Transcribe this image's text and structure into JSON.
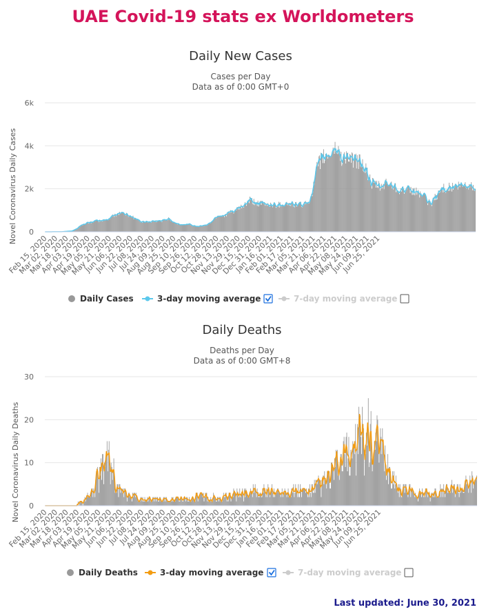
{
  "page": {
    "title": "UAE Covid-19 stats ex Worldometers",
    "footer": "Last updated: June 30, 2021"
  },
  "chart_data": [
    {
      "type": "bar",
      "title": "Daily New Cases",
      "subtitle_1": "Cases per Day",
      "subtitle_2": "Data as of 0:00 GMT+0",
      "ylabel": "Novel Coronavirus Daily Cases",
      "xlabel": "",
      "ylim": [
        0,
        6000
      ],
      "yticks": [
        "0",
        "2k",
        "4k",
        "6k"
      ],
      "ytick_values": [
        0,
        2000,
        4000,
        6000
      ],
      "x_tick_labels": [
        "Feb 15, 2020",
        "Mar 02, 2020",
        "Mar 18, 2020",
        "Apr 03, 2020",
        "Apr 19, 2020",
        "May 05, 2020",
        "May 21, 2020",
        "Jun 06, 2020",
        "Jun 22, 2020",
        "Jul 08, 2020",
        "Jul 24, 2020",
        "Aug 09, 2020",
        "Aug 25, 2020",
        "Sep 10, 2020",
        "Sep 26, 2020",
        "Oct 12, 2020",
        "Oct 28, 2020",
        "Nov 13, 2020",
        "Nov 29, 2020",
        "Dec 15, 2020",
        "Dec 31, 2020",
        "Jan 16, 2021",
        "Feb 01, 2021",
        "Feb 17, 2021",
        "Mar 05, 2021",
        "Mar 21, 2021",
        "Apr 06, 2021",
        "Apr 22, 2021",
        "May 08, 2021",
        "May 24, 2021",
        "Jun 09, 2021",
        "Jun 25, 2021"
      ],
      "grid": true,
      "legend_position": "bottom-center",
      "series": [
        {
          "name": "Daily Cases",
          "color": "#999999",
          "kind": "bar"
        },
        {
          "name": "3-day moving average",
          "color": "#5bc8ec",
          "kind": "line",
          "checked": true
        },
        {
          "name": "7-day moving average",
          "color": "#cccccc",
          "kind": "line",
          "checked": false
        }
      ],
      "trend_points": [
        [
          0,
          0
        ],
        [
          25,
          5
        ],
        [
          40,
          40
        ],
        [
          48,
          150
        ],
        [
          52,
          280
        ],
        [
          62,
          400
        ],
        [
          75,
          500
        ],
        [
          85,
          520
        ],
        [
          90,
          550
        ],
        [
          95,
          600
        ],
        [
          100,
          720
        ],
        [
          105,
          800
        ],
        [
          110,
          870
        ],
        [
          115,
          900
        ],
        [
          120,
          810
        ],
        [
          125,
          760
        ],
        [
          130,
          700
        ],
        [
          138,
          550
        ],
        [
          145,
          460
        ],
        [
          160,
          470
        ],
        [
          175,
          520
        ],
        [
          180,
          560
        ],
        [
          185,
          620
        ],
        [
          190,
          480
        ],
        [
          200,
          330
        ],
        [
          210,
          320
        ],
        [
          215,
          380
        ],
        [
          220,
          280
        ],
        [
          230,
          270
        ],
        [
          240,
          310
        ],
        [
          245,
          390
        ],
        [
          250,
          530
        ],
        [
          255,
          690
        ],
        [
          258,
          760
        ],
        [
          262,
          740
        ],
        [
          270,
          800
        ],
        [
          275,
          900
        ],
        [
          280,
          940
        ],
        [
          290,
          1100
        ],
        [
          300,
          1300
        ],
        [
          305,
          1470
        ],
        [
          310,
          1380
        ],
        [
          315,
          1350
        ],
        [
          320,
          1300
        ],
        [
          330,
          1280
        ],
        [
          340,
          1250
        ],
        [
          350,
          1270
        ],
        [
          360,
          1300
        ],
        [
          370,
          1280
        ],
        [
          380,
          1250
        ],
        [
          390,
          1300
        ],
        [
          395,
          1550
        ],
        [
          400,
          2100
        ],
        [
          405,
          2900
        ],
        [
          410,
          3300
        ],
        [
          415,
          3450
        ],
        [
          420,
          3530
        ],
        [
          425,
          3600
        ],
        [
          430,
          3800
        ],
        [
          435,
          3900
        ],
        [
          440,
          3500
        ],
        [
          445,
          3400
        ],
        [
          450,
          3600
        ],
        [
          455,
          3300
        ],
        [
          460,
          3350
        ],
        [
          465,
          3250
        ],
        [
          470,
          3300
        ],
        [
          480,
          2750
        ],
        [
          485,
          2300
        ],
        [
          490,
          2200
        ],
        [
          495,
          2150
        ],
        [
          500,
          2050
        ],
        [
          505,
          2200
        ],
        [
          510,
          2250
        ],
        [
          515,
          2200
        ],
        [
          520,
          2150
        ],
        [
          525,
          2000
        ],
        [
          535,
          1950
        ],
        [
          545,
          1900
        ],
        [
          555,
          1850
        ],
        [
          565,
          1650
        ],
        [
          570,
          1400
        ],
        [
          575,
          1300
        ],
        [
          580,
          1550
        ],
        [
          585,
          1750
        ],
        [
          590,
          1950
        ],
        [
          595,
          2050
        ],
        [
          605,
          2050
        ],
        [
          615,
          2100
        ],
        [
          625,
          2150
        ],
        [
          632,
          2150
        ],
        [
          635,
          2100
        ],
        [
          641,
          2100
        ]
      ],
      "day_count": 642
    },
    {
      "type": "bar",
      "title": "Daily Deaths",
      "subtitle_1": "Deaths per Day",
      "subtitle_2": "Data as of 0:00 GMT+8",
      "ylabel": "Novel Coronavirus Daily Deaths",
      "xlabel": "",
      "ylim": [
        0,
        30
      ],
      "yticks": [
        "0",
        "10",
        "20",
        "30"
      ],
      "ytick_values": [
        0,
        10,
        20,
        30
      ],
      "x_tick_labels": [
        "Feb 15, 2020",
        "Mar 02, 2020",
        "Mar 18, 2020",
        "Apr 03, 2020",
        "Apr 19, 2020",
        "May 05, 2020",
        "May 21, 2020",
        "Jun 06, 2020",
        "Jun 22, 2020",
        "Jul 08, 2020",
        "Jul 24, 2020",
        "Aug 09, 2020",
        "Aug 25, 2020",
        "Sep 10, 2020",
        "Sep 26, 2020",
        "Oct 12, 2020",
        "Oct 28, 2020",
        "Nov 13, 2020",
        "Nov 29, 2020",
        "Dec 15, 2020",
        "Dec 31, 2020",
        "Jan 16, 2021",
        "Feb 01, 2021",
        "Feb 17, 2021",
        "Mar 05, 2021",
        "Mar 21, 2021",
        "Apr 06, 2021",
        "Apr 22, 2021",
        "May 08, 2021",
        "May 24, 2021",
        "Jun 09, 2021",
        "Jun 25, 2021"
      ],
      "grid": true,
      "legend_position": "bottom-center",
      "series": [
        {
          "name": "Daily Deaths",
          "color": "#999999",
          "kind": "bar"
        },
        {
          "name": "3-day moving average",
          "color": "#f39c12",
          "kind": "line",
          "checked": true
        },
        {
          "name": "7-day moving average",
          "color": "#cccccc",
          "kind": "line",
          "checked": false
        }
      ],
      "trend_points": [
        [
          0,
          0
        ],
        [
          45,
          0
        ],
        [
          50,
          0.5
        ],
        [
          58,
          1
        ],
        [
          63,
          2
        ],
        [
          70,
          3
        ],
        [
          75,
          5
        ],
        [
          80,
          7
        ],
        [
          85,
          8
        ],
        [
          88,
          9
        ],
        [
          90,
          10
        ],
        [
          95,
          11
        ],
        [
          100,
          9
        ],
        [
          103,
          6
        ],
        [
          106,
          4
        ],
        [
          110,
          4
        ],
        [
          115,
          3
        ],
        [
          120,
          2.5
        ],
        [
          130,
          2
        ],
        [
          145,
          1.5
        ],
        [
          160,
          1.5
        ],
        [
          180,
          1.2
        ],
        [
          200,
          1.5
        ],
        [
          220,
          1.8
        ],
        [
          240,
          2
        ],
        [
          260,
          1.5
        ],
        [
          280,
          2.5
        ],
        [
          290,
          2.5
        ],
        [
          300,
          3
        ],
        [
          320,
          3
        ],
        [
          340,
          3
        ],
        [
          360,
          3.5
        ],
        [
          370,
          3.5
        ],
        [
          380,
          3.5
        ],
        [
          390,
          3
        ],
        [
          400,
          4
        ],
        [
          410,
          5
        ],
        [
          420,
          6
        ],
        [
          430,
          8
        ],
        [
          440,
          10
        ],
        [
          450,
          12
        ],
        [
          460,
          14
        ],
        [
          470,
          16
        ],
        [
          480,
          16
        ],
        [
          490,
          14
        ],
        [
          500,
          12
        ],
        [
          510,
          9
        ],
        [
          515,
          7
        ],
        [
          520,
          5
        ],
        [
          530,
          4
        ],
        [
          540,
          3.5
        ],
        [
          550,
          3
        ],
        [
          570,
          3
        ],
        [
          580,
          3
        ],
        [
          590,
          3
        ],
        [
          600,
          3.5
        ],
        [
          610,
          4
        ],
        [
          620,
          4.5
        ],
        [
          630,
          5
        ],
        [
          635,
          5.5
        ],
        [
          641,
          6.5
        ]
      ],
      "day_count": 642
    }
  ]
}
